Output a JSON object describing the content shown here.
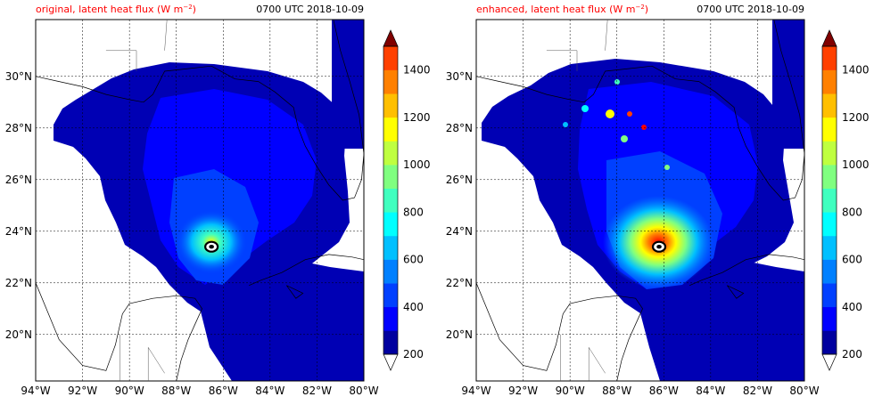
{
  "chart_data": [
    {
      "type": "heatmap",
      "title_left": "original, latent heat flux (W m",
      "title_units_sup": "−2",
      "title_close": ")",
      "title_right": "0700 UTC 2018-10-09",
      "xlim": [
        -94,
        -80
      ],
      "ylim": [
        18.2,
        32.2
      ],
      "x_ticks": [
        "94°W",
        "92°W",
        "90°W",
        "88°W",
        "86°W",
        "84°W",
        "82°W",
        "80°W"
      ],
      "y_ticks": [
        "20°N",
        "22°N",
        "24°N",
        "26°N",
        "28°N",
        "30°N"
      ],
      "grid": true,
      "storm_center": [
        -86.5,
        23.4
      ],
      "enhanced": false
    },
    {
      "type": "heatmap",
      "title_left": "enhanced, latent heat flux (W m",
      "title_units_sup": "−2",
      "title_close": ")",
      "title_right": "0700 UTC 2018-10-09",
      "xlim": [
        -94,
        -80
      ],
      "ylim": [
        18.2,
        32.2
      ],
      "x_ticks": [
        "94°W",
        "92°W",
        "90°W",
        "88°W",
        "86°W",
        "84°W",
        "82°W",
        "80°W"
      ],
      "y_ticks": [
        "20°N",
        "22°N",
        "24°N",
        "26°N",
        "28°N",
        "30°N"
      ],
      "grid": true,
      "storm_center": [
        -86.2,
        23.4
      ],
      "enhanced": true
    }
  ],
  "colorbar": {
    "min": 200,
    "max": 1500,
    "tick_values": [
      200,
      400,
      600,
      800,
      1000,
      1200,
      1400
    ],
    "tick_labels": [
      "200",
      "400",
      "600",
      "800",
      "1000",
      "1200",
      "1400"
    ],
    "levels": [
      200,
      300,
      400,
      500,
      600,
      700,
      800,
      900,
      1000,
      1100,
      1200,
      1300,
      1400,
      1500
    ],
    "colors": [
      "#00009f",
      "#0000ff",
      "#0040ff",
      "#0080ff",
      "#00c0ff",
      "#00ffff",
      "#40ffbf",
      "#80ff80",
      "#bfff40",
      "#ffff00",
      "#ffbf00",
      "#ff8000",
      "#ff4000",
      "#ff0000",
      "#bf0000"
    ],
    "extend_colors": {
      "under": "#ffffff",
      "over": "#800000"
    }
  },
  "colors": {
    "title_red": "#ff0000",
    "land_line": "#000000",
    "grid_line": "#000000"
  }
}
